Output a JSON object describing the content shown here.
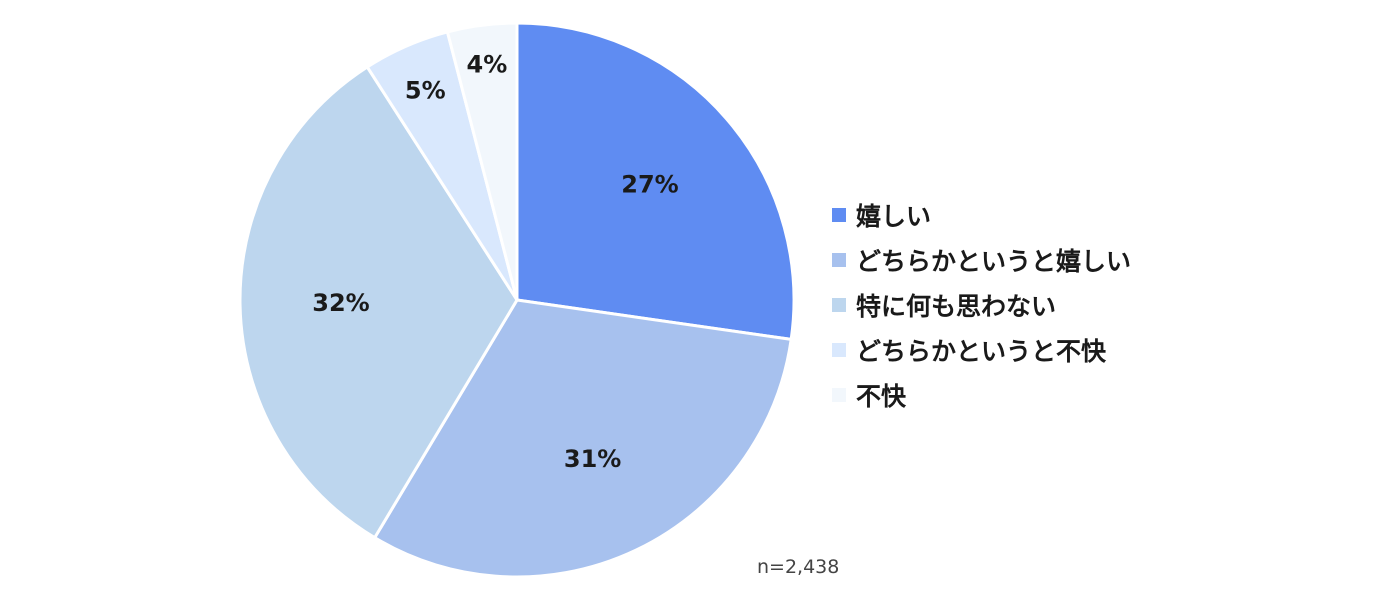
{
  "chart_data": {
    "type": "pie",
    "start_angle": "12 o'clock",
    "direction": "clockwise",
    "slices": [
      {
        "label": "嬉しい",
        "value": 27,
        "value_label": "27%",
        "color": "#5f8cf2"
      },
      {
        "label": "どちらかというと嬉しい",
        "value": 31,
        "value_label": "31%",
        "color": "#a7c1ee"
      },
      {
        "label": "特に何も思わない",
        "value": 32,
        "value_label": "32%",
        "color": "#bdd6ee"
      },
      {
        "label": "どちらかというと不快",
        "value": 5,
        "value_label": "5%",
        "color": "#d9e8fd"
      },
      {
        "label": "不快",
        "value": 4,
        "value_label": "4%",
        "color": "#f2f7fc"
      }
    ],
    "legend_position": "right",
    "annotation": "n=2,438"
  }
}
